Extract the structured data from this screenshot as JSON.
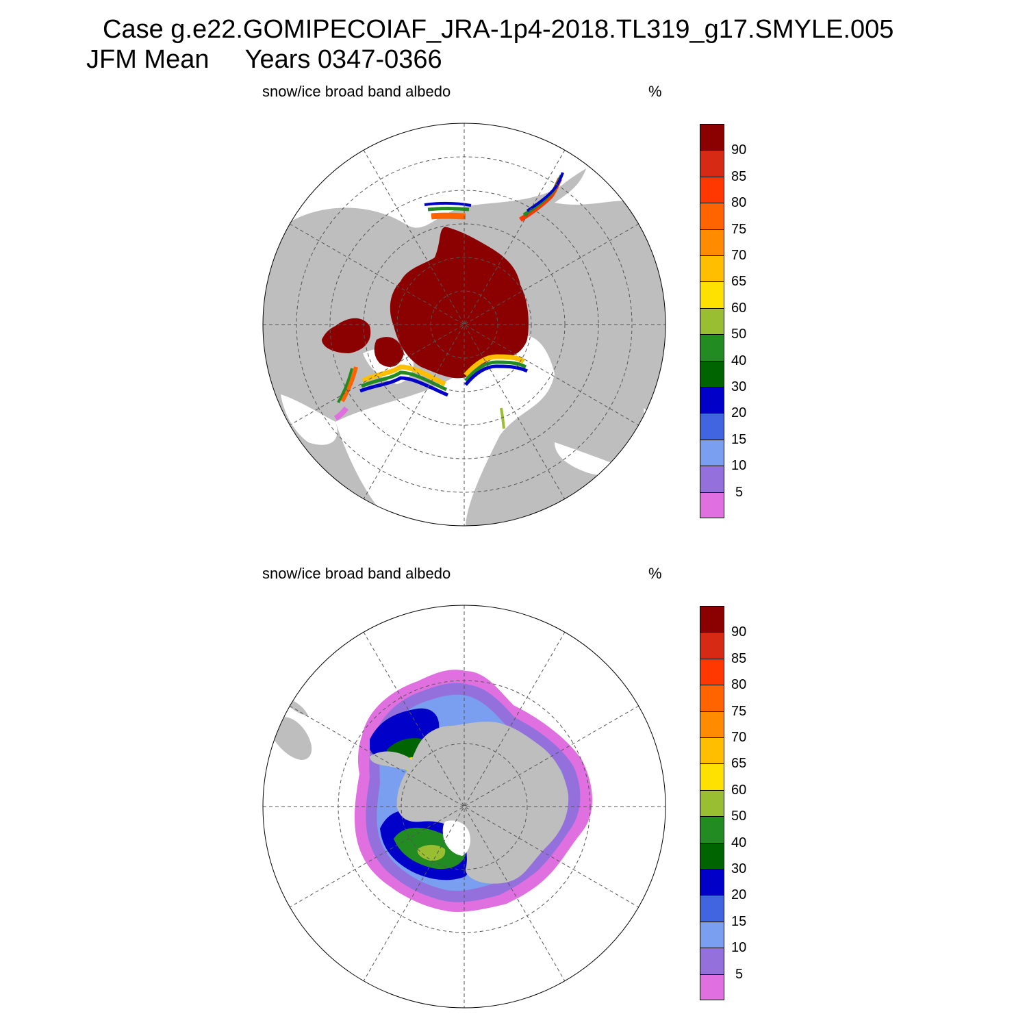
{
  "header": {
    "line1": "Case g.e22.GOMIPECOIAF_JRA-1p4-2018.TL319_g17.SMYLE.005",
    "line2": "JFM Mean     Years 0347-0366"
  },
  "panels": [
    {
      "title": "snow/ice broad band albedo",
      "units": "%",
      "hemisphere": "north"
    },
    {
      "title": "snow/ice broad band albedo",
      "units": "%",
      "hemisphere": "south"
    }
  ],
  "colorbar": {
    "labels": [
      "90",
      "85",
      "80",
      "75",
      "70",
      "65",
      "60",
      "50",
      "40",
      "30",
      "20",
      "15",
      "10",
      "5"
    ],
    "colors": [
      "#8b0000",
      "#d62a14",
      "#ff3700",
      "#ff6400",
      "#ff8c00",
      "#ffbe00",
      "#ffe100",
      "#9abe32",
      "#228b22",
      "#006400",
      "#0000c8",
      "#4164e1",
      "#7a9ef0",
      "#9370db",
      "#e070e0"
    ]
  },
  "map_style": {
    "land": "#bebebe",
    "ocean": "#ffffff",
    "grid": "#555555"
  }
}
